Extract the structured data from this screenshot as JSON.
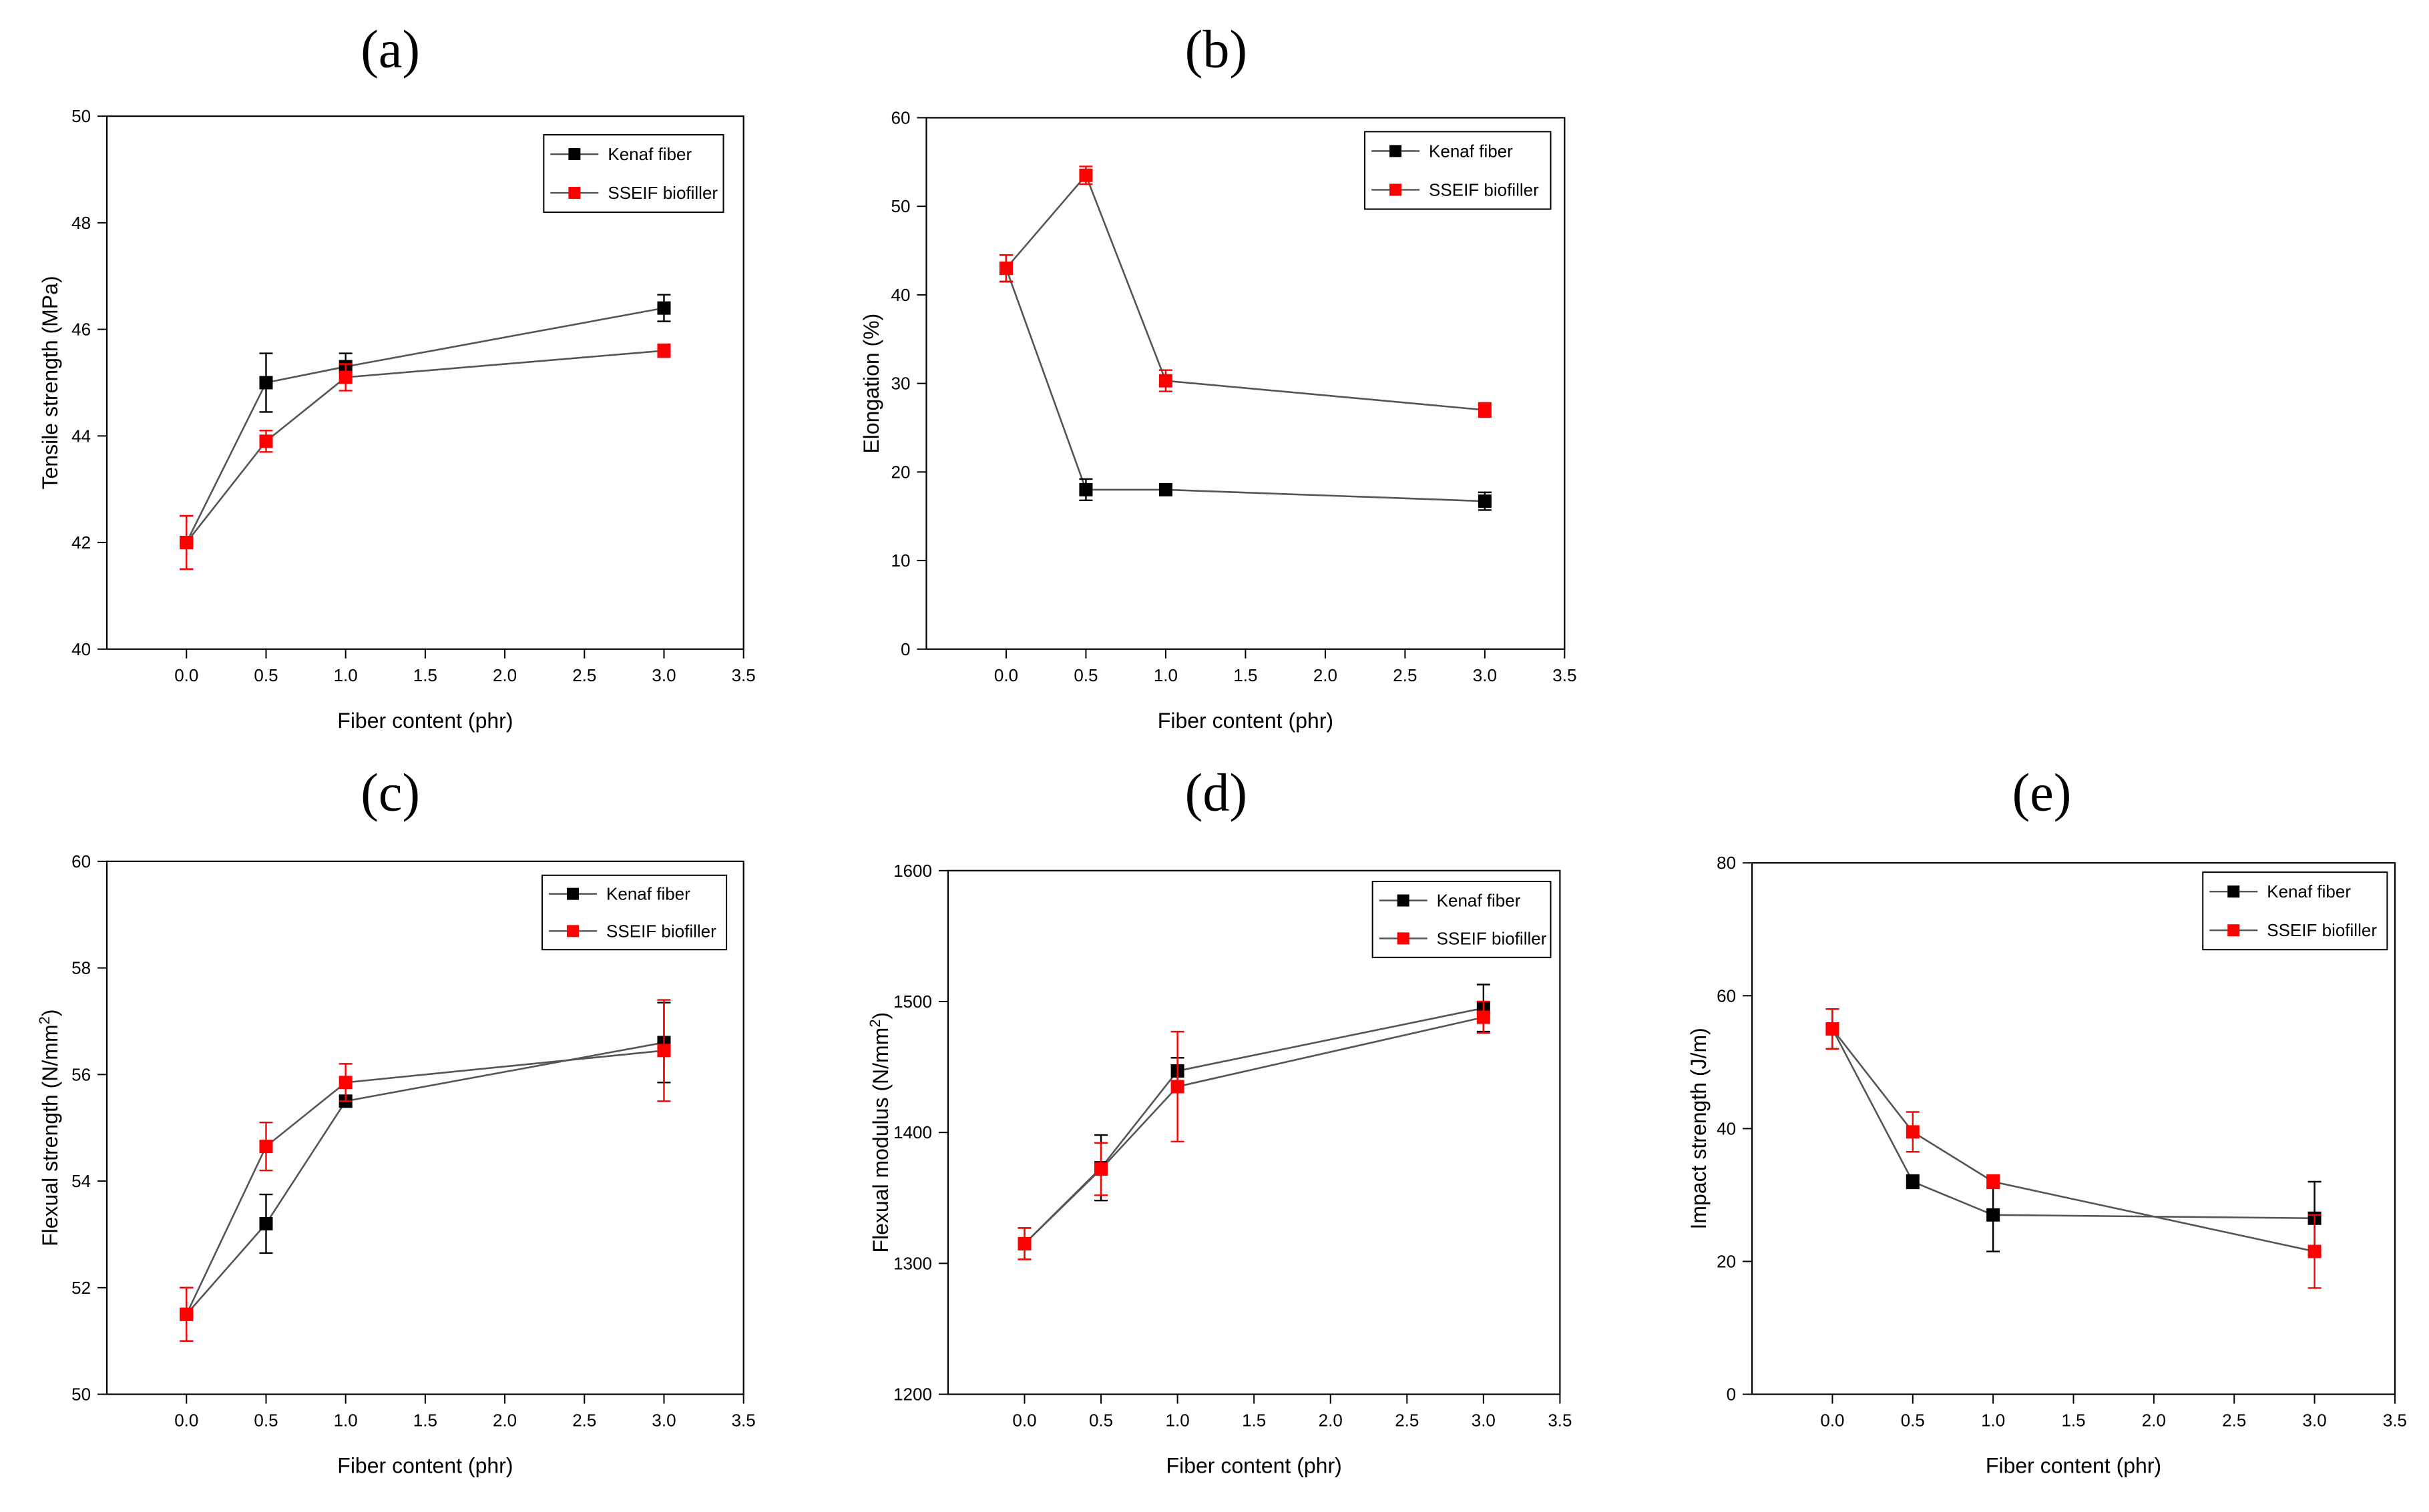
{
  "colors": {
    "kenaf": "#000000",
    "sseif": "#ff0000",
    "line": "#555555",
    "axis": "#000000"
  },
  "chart_data": [
    {
      "panel": "(a)",
      "type": "line",
      "xlabel": "Fiber content (phr)",
      "ylabel": "Tensile strength (MPa)",
      "xlim": [
        -0.5,
        3.5
      ],
      "ylim": [
        40,
        50
      ],
      "xticks": [
        0.0,
        0.5,
        1.0,
        1.5,
        2.0,
        2.5,
        3.0,
        3.5
      ],
      "xtick_labels": [
        "0.0",
        "0.5",
        "1.0",
        "1.5",
        "2.0",
        "2.5",
        "3.0",
        "3.5"
      ],
      "yticks": [
        40,
        42,
        44,
        46,
        48,
        50
      ],
      "ytick_labels": [
        "40",
        "42",
        "44",
        "46",
        "48",
        "50"
      ],
      "legend_position": "top-right",
      "series": [
        {
          "name": "Kenaf fiber",
          "color": "#000000",
          "x": [
            0,
            0.5,
            1.0,
            3.0
          ],
          "y": [
            42.0,
            45.0,
            45.3,
            46.4
          ],
          "err": [
            0.5,
            0.55,
            0.25,
            0.25
          ]
        },
        {
          "name": "SSEIF biofiller",
          "color": "#ff0000",
          "x": [
            0,
            0.5,
            1.0,
            3.0
          ],
          "y": [
            42.0,
            43.9,
            45.1,
            45.6
          ],
          "err": [
            0.5,
            0.2,
            0.25,
            0.12
          ]
        }
      ]
    },
    {
      "panel": "(b)",
      "type": "line",
      "xlabel": "Fiber content (phr)",
      "ylabel": "Elongation (%)",
      "xlim": [
        -0.5,
        3.5
      ],
      "ylim": [
        0,
        60
      ],
      "xticks": [
        0.0,
        0.5,
        1.0,
        1.5,
        2.0,
        2.5,
        3.0,
        3.5
      ],
      "xtick_labels": [
        "0.0",
        "0.5",
        "1.0",
        "1.5",
        "2.0",
        "2.5",
        "3.0",
        "3.5"
      ],
      "yticks": [
        0,
        10,
        20,
        30,
        40,
        50,
        60
      ],
      "ytick_labels": [
        "0",
        "10",
        "20",
        "30",
        "40",
        "50",
        "60"
      ],
      "legend_position": "top-right",
      "series": [
        {
          "name": "Kenaf fiber",
          "color": "#000000",
          "x": [
            0,
            0.5,
            1.0,
            3.0
          ],
          "y": [
            43.0,
            18.0,
            18.0,
            16.7
          ],
          "err": [
            1.5,
            1.2,
            0.5,
            1.0
          ]
        },
        {
          "name": "SSEIF biofiller",
          "color": "#ff0000",
          "x": [
            0,
            0.5,
            1.0,
            3.0
          ],
          "y": [
            43.0,
            53.5,
            30.3,
            27.0
          ],
          "err": [
            1.5,
            1.0,
            1.2,
            0.8
          ]
        }
      ]
    },
    {
      "panel": "(c)",
      "type": "line",
      "xlabel": "Fiber content (phr)",
      "ylabel": "Flexual strength (N/mm",
      "ylabel_sup": "2",
      "ylabel_tail": ")",
      "xlim": [
        -0.5,
        3.5
      ],
      "ylim": [
        50,
        60
      ],
      "xticks": [
        0.0,
        0.5,
        1.0,
        1.5,
        2.0,
        2.5,
        3.0,
        3.5
      ],
      "xtick_labels": [
        "0.0",
        "0.5",
        "1.0",
        "1.5",
        "2.0",
        "2.5",
        "3.0",
        "3.5"
      ],
      "yticks": [
        50,
        52,
        54,
        56,
        58,
        60
      ],
      "ytick_labels": [
        "50",
        "52",
        "54",
        "56",
        "58",
        "60"
      ],
      "legend_position": "top-right",
      "series": [
        {
          "name": "Kenaf fiber",
          "color": "#000000",
          "x": [
            0,
            0.5,
            1.0,
            3.0
          ],
          "y": [
            51.5,
            53.2,
            55.5,
            56.6
          ],
          "err": [
            0.5,
            0.55,
            0.1,
            0.75
          ]
        },
        {
          "name": "SSEIF biofiller",
          "color": "#ff0000",
          "x": [
            0,
            0.5,
            1.0,
            3.0
          ],
          "y": [
            51.5,
            54.65,
            55.85,
            56.45
          ],
          "err": [
            0.5,
            0.45,
            0.35,
            0.95
          ]
        }
      ]
    },
    {
      "panel": "(d)",
      "type": "line",
      "xlabel": "Fiber content (phr)",
      "ylabel": "Flexual modulus (N/mm",
      "ylabel_sup": "2",
      "ylabel_tail": ")",
      "xlim": [
        -0.5,
        3.5
      ],
      "ylim": [
        1200,
        1600
      ],
      "xticks": [
        0.0,
        0.5,
        1.0,
        1.5,
        2.0,
        2.5,
        3.0,
        3.5
      ],
      "xtick_labels": [
        "0.0",
        "0.5",
        "1.0",
        "1.5",
        "2.0",
        "2.5",
        "3.0",
        "3.5"
      ],
      "yticks": [
        1200,
        1300,
        1400,
        1500,
        1600
      ],
      "ytick_labels": [
        "1200",
        "1300",
        "1400",
        "1500",
        "1600"
      ],
      "legend_position": "top-right",
      "series": [
        {
          "name": "Kenaf fiber",
          "color": "#000000",
          "x": [
            0,
            0.5,
            1.0,
            3.0
          ],
          "y": [
            1315,
            1373,
            1447,
            1495
          ],
          "err": [
            12,
            25,
            10,
            18
          ]
        },
        {
          "name": "SSEIF biofiller",
          "color": "#ff0000",
          "x": [
            0,
            0.5,
            1.0,
            3.0
          ],
          "y": [
            1315,
            1372,
            1435,
            1488
          ],
          "err": [
            12,
            20,
            42,
            12
          ]
        }
      ]
    },
    {
      "panel": "(e)",
      "type": "line",
      "xlabel": "Fiber content (phr)",
      "ylabel": "Impact strength (J/m)",
      "xlim": [
        -0.5,
        3.5
      ],
      "ylim": [
        0,
        80
      ],
      "xticks": [
        0.0,
        0.5,
        1.0,
        1.5,
        2.0,
        2.5,
        3.0,
        3.5
      ],
      "xtick_labels": [
        "0.0",
        "0.5",
        "1.0",
        "1.5",
        "2.0",
        "2.5",
        "3.0",
        "3.5"
      ],
      "yticks": [
        0,
        20,
        40,
        60,
        80
      ],
      "ytick_labels": [
        "0",
        "20",
        "40",
        "60",
        "80"
      ],
      "legend_position": "top-right",
      "series": [
        {
          "name": "Kenaf fiber",
          "color": "#000000",
          "x": [
            0,
            0.5,
            1.0,
            3.0
          ],
          "y": [
            55.0,
            32.0,
            27.0,
            26.5
          ],
          "err": [
            3.0,
            1.0,
            5.5,
            5.5
          ]
        },
        {
          "name": "SSEIF biofiller",
          "color": "#ff0000",
          "x": [
            0,
            0.5,
            1.0,
            3.0
          ],
          "y": [
            55.0,
            39.5,
            32.0,
            21.5
          ],
          "err": [
            3.0,
            3.0,
            1.0,
            5.5
          ]
        }
      ]
    }
  ]
}
